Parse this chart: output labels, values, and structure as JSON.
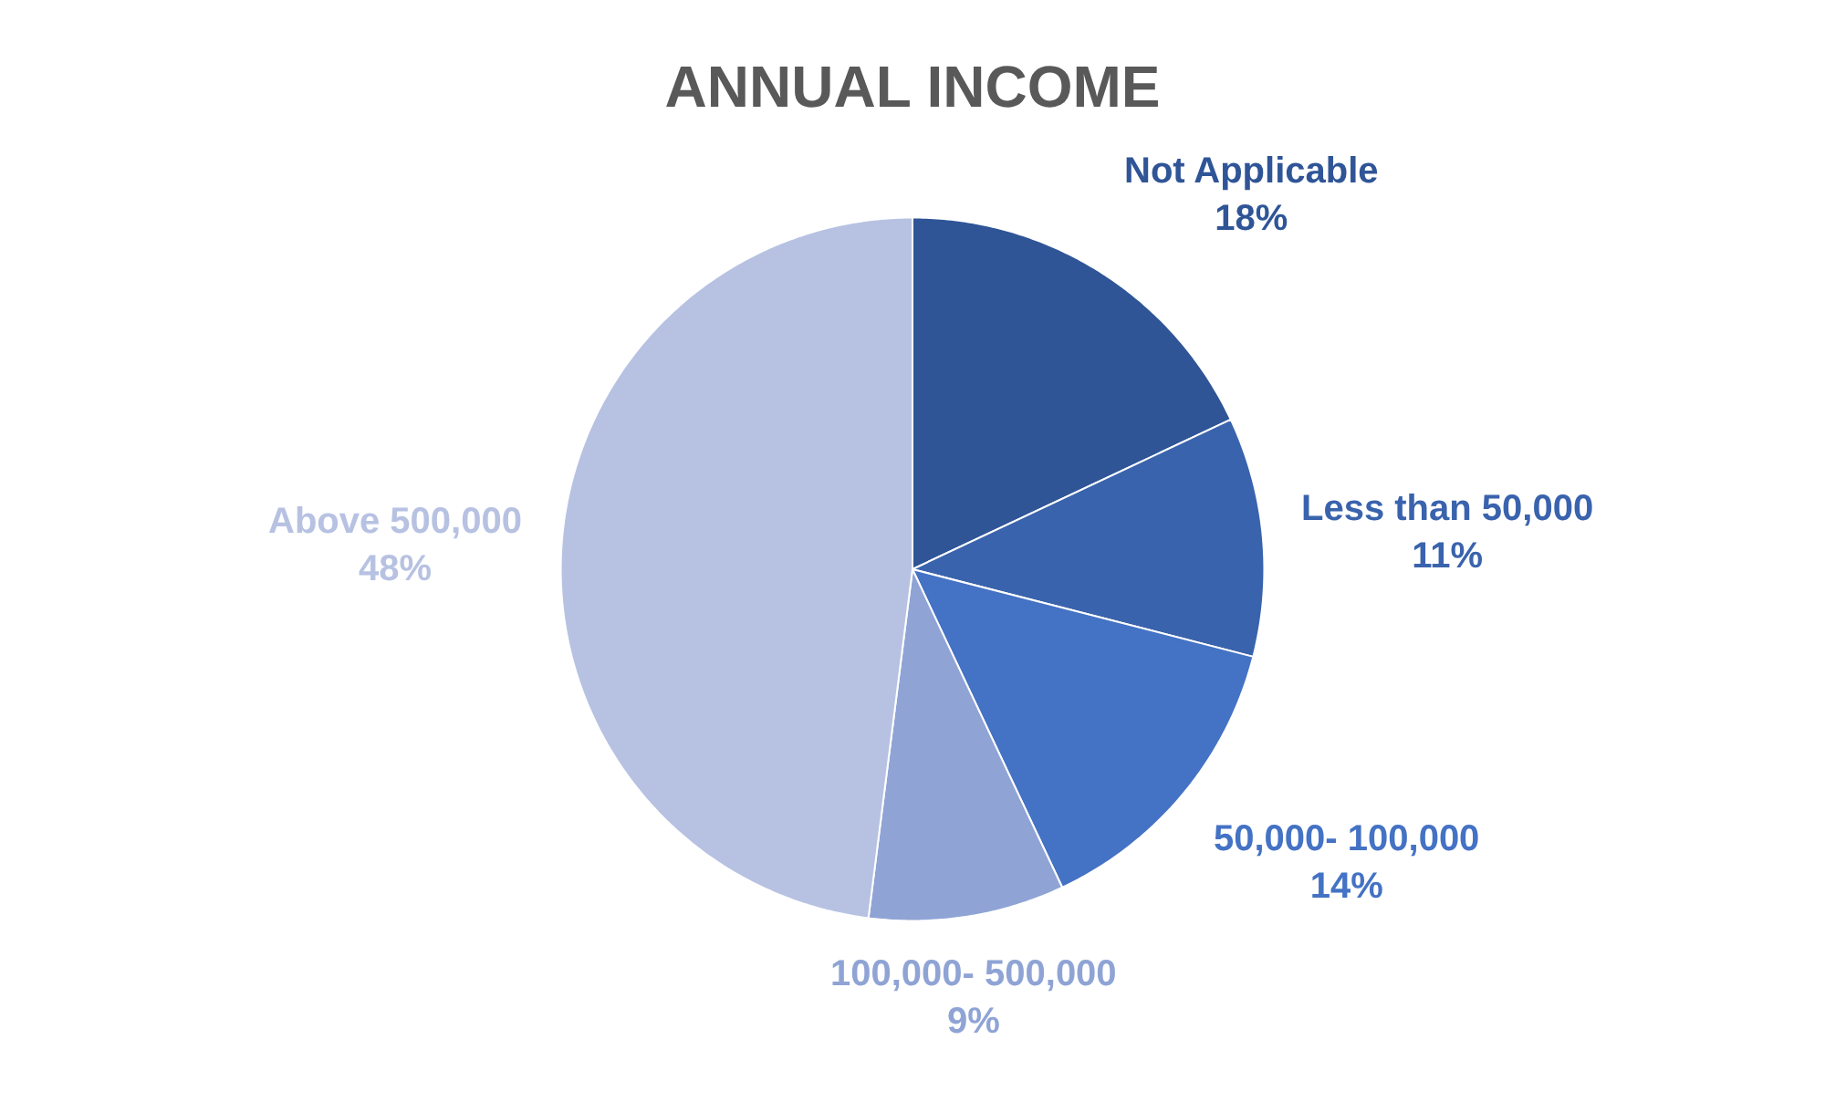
{
  "chart_data": {
    "type": "pie",
    "title": "ANNUAL INCOME",
    "categories": [
      "Not Applicable",
      "Less than 50,000",
      "50,000- 100,000",
      "100,000- 500,000",
      "Above 500,000"
    ],
    "values": [
      18,
      11,
      14,
      9,
      48
    ],
    "value_labels": [
      "18%",
      "11%",
      "14%",
      "9%",
      "48%"
    ],
    "colors": [
      "#2f5597",
      "#3a63ad",
      "#4472c4",
      "#8fa4d5",
      "#b7c2e2"
    ],
    "legend": false
  }
}
